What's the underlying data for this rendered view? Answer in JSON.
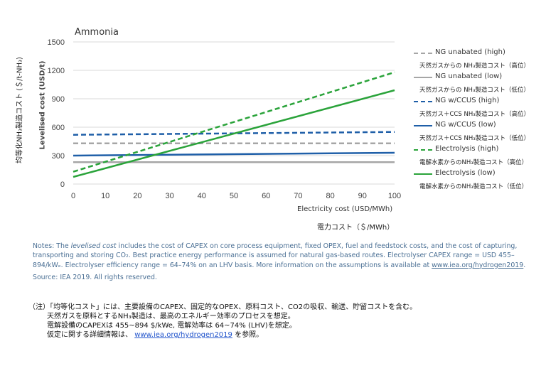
{
  "chart_data": {
    "type": "line",
    "title": "Ammonia",
    "ylabel": "Levelised cost (USD/t)",
    "ylabel_ja": "均等化NH₃製造コスト (＄/t-NH₃)",
    "xlabel": "Electricity cost (USD/MWh)",
    "xlabel_ja": "電力コスト（＄/MWh）",
    "xlim": [
      0,
      100
    ],
    "ylim": [
      0,
      1500
    ],
    "x_ticks": [
      "0",
      "10",
      "20",
      "30",
      "40",
      "50",
      "60",
      "70",
      "80",
      "90",
      "100"
    ],
    "y_ticks": [
      "0",
      "300",
      "600",
      "900",
      "1200",
      "1500"
    ],
    "grid": "horizontal",
    "legend_position": "right",
    "x": [
      0,
      100
    ],
    "series": [
      {
        "name": "NG unabated (high)",
        "name_ja": "天然ガスからの NH₃製造コスト（高位）",
        "values": [
          430,
          430
        ],
        "color": "#a6a6a6",
        "style": "dashed"
      },
      {
        "name": "NG unabated (low)",
        "name_ja": "天然ガスからの NH₃製造コスト（低位）",
        "values": [
          230,
          230
        ],
        "color": "#a6a6a6",
        "style": "solid"
      },
      {
        "name": "NG w/CCUS (high)",
        "name_ja": "天然ガス＋CCS NH₃製造コスト（高位）",
        "values": [
          520,
          550
        ],
        "color": "#1f5fa8",
        "style": "dashed"
      },
      {
        "name": "NG w/CCUS (low)",
        "name_ja": "天然ガス＋CCS NH₃製造コスト（低位）",
        "values": [
          300,
          330
        ],
        "color": "#1f5fa8",
        "style": "solid"
      },
      {
        "name": "Electrolysis (high)",
        "name_ja": "電解水素からのNH₃製造コスト（高位）",
        "values": [
          130,
          1180
        ],
        "color": "#2aa33a",
        "style": "dashed"
      },
      {
        "name": "Electrolysis (low)",
        "name_ja": "電解水素からのNH₃製造コスト（低位）",
        "values": [
          75,
          990
        ],
        "color": "#2aa33a",
        "style": "solid"
      }
    ]
  },
  "notes": {
    "p1_before": "Notes: The ",
    "p1_italic": "levelised cost",
    "p1_after": " includes the cost of CAPEX on core process equipment, fixed OPEX, fuel and feedstock costs, and the cost of capturing, transporting and storing CO₂. Best practice energy performance is assumed for natural gas-based routes. Electrolyser CAPEX range = USD 455–894/kWₑ. Electrolyser efficiency range = 64–74% on an LHV basis. More information on the assumptions is available at ",
    "p1_link": "www.iea.org/hydrogen2019",
    "p1_end": ".",
    "source": "Source: IEA 2019. All rights reserved."
  },
  "jp_notes": {
    "line1": "（注）「均等化コスト」には、主要設備のCAPEX、固定的なOPEX、原料コスト、CO2の吸収、輸送、貯留コストを含む。",
    "line2": "天然ガスを原料とするNH₃製造は、最高のエネルギー効率のプロセスを想定。",
    "line3": "電解設備のCAPEXは 455~894 $/kWe, 電解効率は 64~74% (LHV)を想定。",
    "line4_before": "仮定に関する詳細情報は、 ",
    "line4_link": "www.iea.org/hydrogen2019",
    "line4_after": " を参照。"
  }
}
